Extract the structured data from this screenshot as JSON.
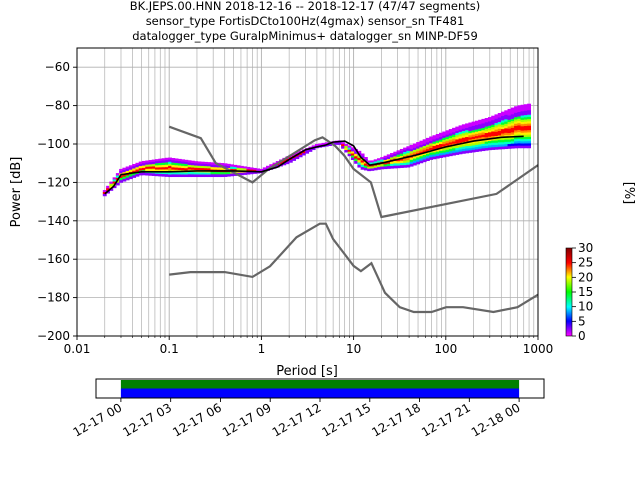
{
  "chart_data": {
    "type": "heatmap",
    "title_lines": [
      "BK.JEPS.00.HNN   2018-12-16 -- 2018-12-17  (47/47 segments)",
      "sensor_type FortisDCto100Hz(4gmax) sensor_sn TF481",
      "datalogger_type GuralpMinimus+ datalogger_sn MINP-DF59"
    ],
    "xlabel": "Period [s]",
    "ylabel": "Power [dB]",
    "x_scale": "log",
    "xlim": [
      0.01,
      1000
    ],
    "ylim": [
      -200,
      -50
    ],
    "x_ticks": [
      {
        "value": 0.01,
        "label": "0.01"
      },
      {
        "value": 0.1,
        "label": "0.1"
      },
      {
        "value": 1,
        "label": "1"
      },
      {
        "value": 10,
        "label": "10"
      },
      {
        "value": 100,
        "label": "100"
      },
      {
        "value": 1000,
        "label": "1000"
      }
    ],
    "y_ticks": [
      {
        "value": -60,
        "label": "−60"
      },
      {
        "value": -80,
        "label": "−80"
      },
      {
        "value": -100,
        "label": "−100"
      },
      {
        "value": -120,
        "label": "−120"
      },
      {
        "value": -140,
        "label": "−140"
      },
      {
        "value": -160,
        "label": "−160"
      },
      {
        "value": -180,
        "label": "−180"
      },
      {
        "value": -200,
        "label": "−200"
      }
    ],
    "grid": true,
    "colorbar": {
      "label": "[%]",
      "range": [
        0,
        30
      ],
      "ticks": [
        {
          "value": 0,
          "label": "0"
        },
        {
          "value": 5,
          "label": "5"
        },
        {
          "value": 10,
          "label": "10"
        },
        {
          "value": 15,
          "label": "15"
        },
        {
          "value": 20,
          "label": "20"
        },
        {
          "value": 25,
          "label": "25"
        },
        {
          "value": 30,
          "label": "30"
        }
      ]
    },
    "noise_models": [
      {
        "points": [
          [
            0.1,
            -91
          ],
          [
            0.22,
            -97
          ],
          [
            0.32,
            -110
          ],
          [
            0.8,
            -120
          ],
          [
            1.2,
            -113
          ],
          [
            3.8,
            -98
          ],
          [
            4.6,
            -96.5
          ],
          [
            6.3,
            -101
          ],
          [
            7.9,
            -106
          ],
          [
            10,
            -113
          ],
          [
            15.4,
            -120
          ],
          [
            20,
            -138
          ],
          [
            354.8,
            -126
          ],
          [
            1000,
            -111
          ]
        ]
      },
      {
        "points": [
          [
            0.1,
            -168
          ],
          [
            0.17,
            -166.7
          ],
          [
            0.4,
            -166.7
          ],
          [
            0.8,
            -169.2
          ],
          [
            1.24,
            -163.7
          ],
          [
            2.4,
            -148.6
          ],
          [
            4.3,
            -141.5
          ],
          [
            5,
            -141.5
          ],
          [
            6,
            -149.5
          ],
          [
            10,
            -163.5
          ],
          [
            12,
            -166.2
          ],
          [
            15.6,
            -162.1
          ],
          [
            21.9,
            -177.5
          ],
          [
            31.6,
            -185
          ],
          [
            45,
            -187.5
          ],
          [
            70,
            -187.5
          ],
          [
            101,
            -185
          ],
          [
            154,
            -185
          ],
          [
            328,
            -187.5
          ],
          [
            600,
            -185
          ],
          [
            1000,
            -178.5
          ]
        ]
      }
    ],
    "mean_psd": [
      [
        0.02,
        -126
      ],
      [
        0.025,
        -122
      ],
      [
        0.03,
        -116
      ],
      [
        0.05,
        -114.5
      ],
      [
        0.1,
        -114.5
      ],
      [
        0.2,
        -114
      ],
      [
        0.5,
        -114
      ],
      [
        1,
        -114.5
      ],
      [
        1.5,
        -112
      ],
      [
        2,
        -108
      ],
      [
        3,
        -103
      ],
      [
        4,
        -101.5
      ],
      [
        5,
        -100.5
      ],
      [
        6,
        -99
      ],
      [
        8,
        -98.5
      ],
      [
        10,
        -101
      ],
      [
        12,
        -107
      ],
      [
        15,
        -111
      ],
      [
        20,
        -110
      ],
      [
        30,
        -108
      ],
      [
        50,
        -105.5
      ],
      [
        100,
        -101.5
      ],
      [
        200,
        -98.5
      ],
      [
        400,
        -96.5
      ],
      [
        700,
        -96
      ]
    ],
    "psd_spread": [
      {
        "period": 0.02,
        "low": -127,
        "high": -124
      },
      {
        "period": 0.03,
        "low": -120,
        "high": -113
      },
      {
        "period": 0.05,
        "low": -116,
        "high": -109
      },
      {
        "period": 0.1,
        "low": -117,
        "high": -107
      },
      {
        "period": 0.2,
        "low": -117,
        "high": -109
      },
      {
        "period": 0.4,
        "low": -117,
        "high": -110
      },
      {
        "period": 1,
        "low": -115,
        "high": -113
      },
      {
        "period": 2,
        "low": -110,
        "high": -106
      },
      {
        "period": 4,
        "low": -102,
        "high": -100
      },
      {
        "period": 7,
        "low": -100,
        "high": -98
      },
      {
        "period": 12,
        "low": -113,
        "high": -104
      },
      {
        "period": 15,
        "low": -114,
        "high": -109
      },
      {
        "period": 20,
        "low": -113,
        "high": -107
      },
      {
        "period": 40,
        "low": -112,
        "high": -101
      },
      {
        "period": 70,
        "low": -108,
        "high": -96
      },
      {
        "period": 150,
        "low": -105,
        "high": -90
      },
      {
        "period": 300,
        "low": -103,
        "high": -86
      },
      {
        "period": 600,
        "low": -102,
        "high": -80
      },
      {
        "period": 800,
        "low": -102,
        "high": -79
      }
    ],
    "timeline": {
      "tick_labels": [
        "12-17 00",
        "12-17 03",
        "12-17 06",
        "12-17 09",
        "12-17 12",
        "12-17 15",
        "12-17 18",
        "12-17 21",
        "12-18 00"
      ],
      "range_hours": [
        -1.5,
        25.5
      ],
      "data_hours": [
        0,
        24
      ],
      "colors": {
        "top": "#008000",
        "bottom": "#0000ff"
      }
    }
  }
}
